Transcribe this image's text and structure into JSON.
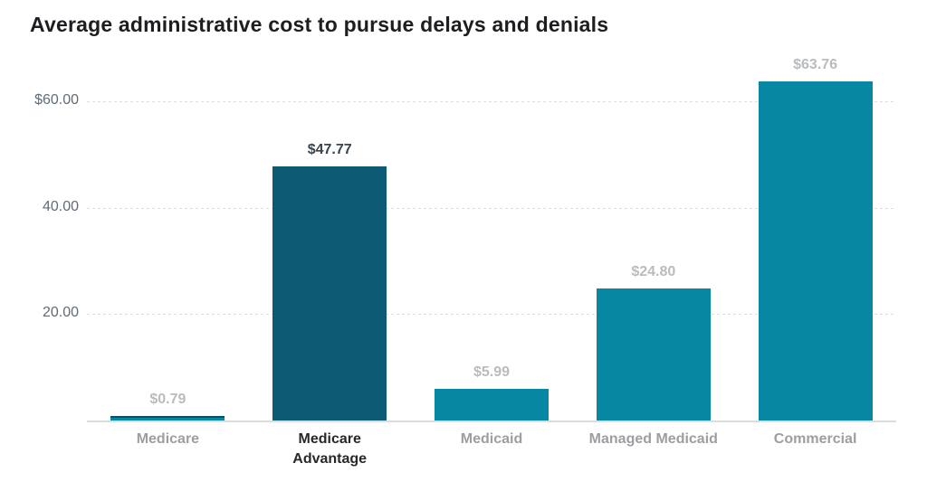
{
  "title": "Average administrative cost to pursue delays and denials",
  "chart_data": {
    "type": "bar",
    "title": "Average administrative cost to pursue delays and denials",
    "xlabel": "",
    "ylabel": "",
    "categories": [
      "Medicare",
      "Medicare Advantage",
      "Medicaid",
      "Managed Medicaid",
      "Commercial"
    ],
    "category_lines": [
      [
        "Medicare"
      ],
      [
        "Medicare",
        "Advantage"
      ],
      [
        "Medicaid"
      ],
      [
        "Managed Medicaid"
      ],
      [
        "Commercial"
      ]
    ],
    "values": [
      0.79,
      47.77,
      5.99,
      24.8,
      63.76
    ],
    "value_labels": [
      "$0.79",
      "$47.77",
      "$5.99",
      "$24.80",
      "$63.76"
    ],
    "highlighted_index": 1,
    "ylim": [
      0,
      67
    ],
    "yticks": [
      {
        "value": 20,
        "label": "20.00"
      },
      {
        "value": 40,
        "label": "40.00"
      },
      {
        "value": 60,
        "label": "$60.00"
      }
    ],
    "grid": true,
    "legend": false,
    "colors": {
      "bar": "#0787a2",
      "bar_highlight": "#0c5a73",
      "value_label": "#b9bcbf",
      "value_label_highlight": "#3a444d",
      "category_label": "#9c9ea1",
      "category_label_highlight": "#26292c",
      "ytick_label": "#5f6b77",
      "gridline": "#dcdddd",
      "baseline": "#dcdddd",
      "title": "#1c1e21",
      "background": "#ffffff"
    }
  }
}
